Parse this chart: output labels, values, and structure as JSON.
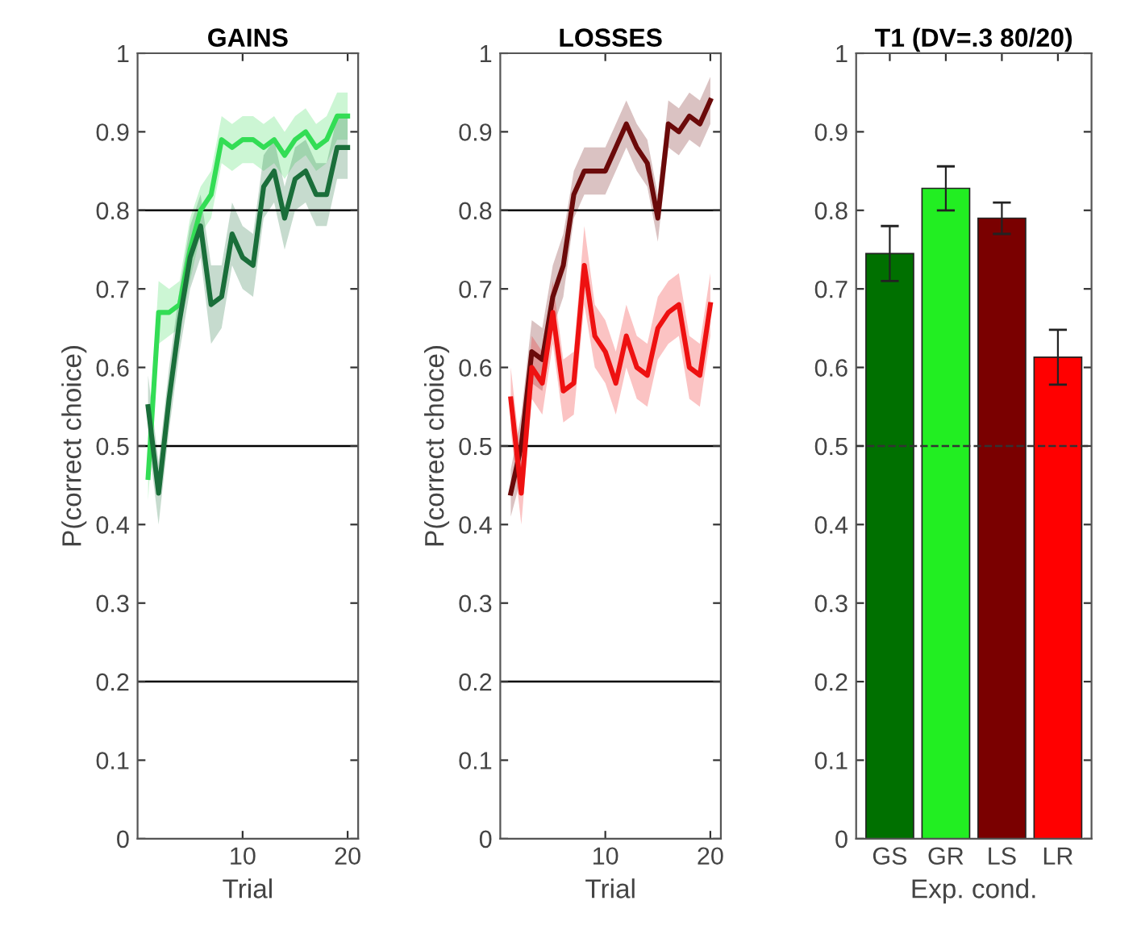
{
  "chart_data": [
    {
      "type": "line",
      "title": "GAINS",
      "xlabel": "Trial",
      "ylabel": "P(correct choice)",
      "xlim": [
        0,
        21
      ],
      "xticks": [
        10,
        20
      ],
      "ylim": [
        0,
        1
      ],
      "yticks": [
        0,
        0.1,
        0.2,
        0.3,
        0.4,
        0.5,
        0.6,
        0.7,
        0.8,
        0.9,
        1
      ],
      "grid": false,
      "legend": false,
      "x": [
        1,
        2,
        3,
        4,
        5,
        6,
        7,
        8,
        9,
        10,
        11,
        12,
        13,
        14,
        15,
        16,
        17,
        18,
        19,
        20
      ],
      "ref_lines": [
        {
          "axis": "y",
          "value": 0.2,
          "color": "#000000"
        },
        {
          "axis": "y",
          "value": 0.5,
          "color": "#000000"
        },
        {
          "axis": "y",
          "value": 0.8,
          "color": "#000000"
        }
      ],
      "series": [
        {
          "color": "#33dd55",
          "values": [
            0.46,
            0.67,
            0.67,
            0.68,
            0.75,
            0.8,
            0.82,
            0.89,
            0.88,
            0.89,
            0.89,
            0.88,
            0.89,
            0.87,
            0.89,
            0.9,
            0.88,
            0.89,
            0.92,
            0.92
          ],
          "lower": [
            0.43,
            0.63,
            0.64,
            0.65,
            0.71,
            0.77,
            0.79,
            0.86,
            0.85,
            0.86,
            0.86,
            0.85,
            0.86,
            0.84,
            0.86,
            0.87,
            0.85,
            0.86,
            0.89,
            0.89
          ],
          "upper": [
            0.49,
            0.71,
            0.7,
            0.71,
            0.79,
            0.83,
            0.85,
            0.92,
            0.91,
            0.92,
            0.92,
            0.91,
            0.92,
            0.9,
            0.92,
            0.93,
            0.91,
            0.92,
            0.95,
            0.95
          ]
        },
        {
          "color": "#1a6e3a",
          "values": [
            0.55,
            0.44,
            0.56,
            0.66,
            0.74,
            0.78,
            0.68,
            0.69,
            0.77,
            0.74,
            0.73,
            0.83,
            0.85,
            0.79,
            0.84,
            0.85,
            0.82,
            0.82,
            0.88,
            0.88
          ],
          "lower": [
            0.51,
            0.4,
            0.52,
            0.62,
            0.7,
            0.74,
            0.63,
            0.65,
            0.73,
            0.7,
            0.69,
            0.79,
            0.81,
            0.75,
            0.8,
            0.81,
            0.78,
            0.78,
            0.84,
            0.84
          ],
          "upper": [
            0.59,
            0.48,
            0.6,
            0.7,
            0.78,
            0.82,
            0.73,
            0.73,
            0.81,
            0.78,
            0.77,
            0.87,
            0.89,
            0.83,
            0.88,
            0.89,
            0.86,
            0.86,
            0.92,
            0.92
          ]
        }
      ]
    },
    {
      "type": "line",
      "title": "LOSSES",
      "xlabel": "Trial",
      "ylabel": "P(correct choice)",
      "xlim": [
        0,
        21
      ],
      "xticks": [
        10,
        20
      ],
      "ylim": [
        0,
        1
      ],
      "yticks": [
        0,
        0.1,
        0.2,
        0.3,
        0.4,
        0.5,
        0.6,
        0.7,
        0.8,
        0.9,
        1
      ],
      "grid": false,
      "legend": false,
      "x": [
        1,
        2,
        3,
        4,
        5,
        6,
        7,
        8,
        9,
        10,
        11,
        12,
        13,
        14,
        15,
        16,
        17,
        18,
        19,
        20
      ],
      "ref_lines": [
        {
          "axis": "y",
          "value": 0.2,
          "color": "#000000"
        },
        {
          "axis": "y",
          "value": 0.5,
          "color": "#000000"
        },
        {
          "axis": "y",
          "value": 0.8,
          "color": "#000000"
        }
      ],
      "series": [
        {
          "color": "#6b0a0a",
          "values": [
            0.44,
            0.5,
            0.62,
            0.61,
            0.69,
            0.73,
            0.82,
            0.85,
            0.85,
            0.85,
            0.88,
            0.91,
            0.88,
            0.86,
            0.79,
            0.91,
            0.9,
            0.92,
            0.91,
            0.94
          ],
          "lower": [
            0.41,
            0.46,
            0.58,
            0.57,
            0.65,
            0.69,
            0.79,
            0.82,
            0.82,
            0.82,
            0.85,
            0.88,
            0.85,
            0.83,
            0.76,
            0.88,
            0.87,
            0.89,
            0.88,
            0.91
          ],
          "upper": [
            0.47,
            0.54,
            0.66,
            0.65,
            0.73,
            0.77,
            0.85,
            0.88,
            0.88,
            0.88,
            0.91,
            0.94,
            0.91,
            0.89,
            0.82,
            0.94,
            0.93,
            0.95,
            0.94,
            0.97
          ]
        },
        {
          "color": "#ee1111",
          "values": [
            0.56,
            0.44,
            0.6,
            0.58,
            0.67,
            0.57,
            0.58,
            0.73,
            0.64,
            0.62,
            0.58,
            0.64,
            0.6,
            0.59,
            0.65,
            0.67,
            0.68,
            0.6,
            0.59,
            0.68
          ],
          "lower": [
            0.52,
            0.4,
            0.56,
            0.54,
            0.63,
            0.53,
            0.54,
            0.68,
            0.6,
            0.58,
            0.54,
            0.6,
            0.56,
            0.55,
            0.61,
            0.63,
            0.64,
            0.56,
            0.55,
            0.64
          ],
          "upper": [
            0.6,
            0.48,
            0.64,
            0.62,
            0.71,
            0.61,
            0.62,
            0.78,
            0.68,
            0.66,
            0.62,
            0.68,
            0.64,
            0.63,
            0.69,
            0.71,
            0.72,
            0.64,
            0.63,
            0.72
          ]
        }
      ]
    },
    {
      "type": "bar",
      "title": "T1 (DV=.3 80/20)",
      "xlabel": "Exp. cond.",
      "categories": [
        "GS",
        "GR",
        "LS",
        "LR"
      ],
      "values": [
        0.745,
        0.828,
        0.79,
        0.613
      ],
      "errors": [
        0.035,
        0.028,
        0.02,
        0.035
      ],
      "colors": [
        "#007000",
        "#22ee22",
        "#7a0000",
        "#ff0000"
      ],
      "ylim": [
        0,
        1
      ],
      "yticks": [
        0,
        0.1,
        0.2,
        0.3,
        0.4,
        0.5,
        0.6,
        0.7,
        0.8,
        0.9,
        1
      ],
      "grid": false,
      "legend": false,
      "ref_lines": [
        {
          "axis": "y",
          "value": 0.5,
          "color": "#333333",
          "line_style": "dashed"
        }
      ]
    }
  ]
}
